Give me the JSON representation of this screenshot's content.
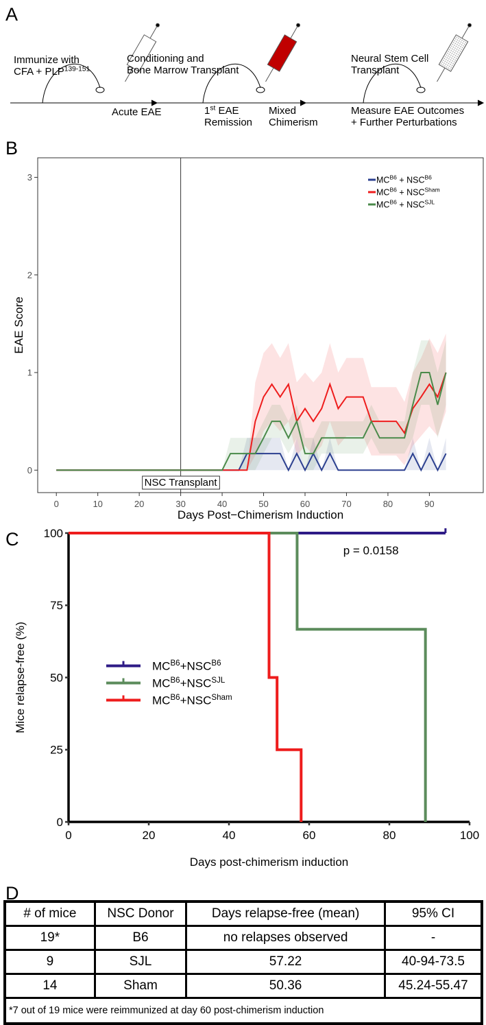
{
  "panel_a": {
    "label": "A",
    "top": [
      {
        "lines": [
          [
            "Immunize with"
          ],
          [
            "CFA + PLP",
            "139-151"
          ]
        ]
      },
      {
        "lines": [
          [
            "Conditioning and"
          ],
          [
            "Bone Marrow Transplant"
          ]
        ]
      },
      {
        "lines": [
          [
            "Neural Stem Cell"
          ],
          [
            "Transplant"
          ]
        ]
      }
    ],
    "bottom": [
      {
        "lines": [
          [
            "Acute EAE"
          ]
        ]
      },
      {
        "lines": [
          [
            "1",
            "st",
            " EAE"
          ],
          [
            "Remission"
          ]
        ]
      },
      {
        "lines": [
          [
            "Mixed"
          ],
          [
            "Chimerism"
          ]
        ]
      },
      {
        "lines": [
          [
            "Measure EAE Outcomes"
          ],
          [
            "+ Further Perturbations"
          ]
        ]
      }
    ]
  },
  "chart_data": [
    {
      "type": "line",
      "panel": "B",
      "ylabel": "EAE Score",
      "xlabel": "Days Post−Chimerism Induction",
      "x": [
        0,
        40,
        42,
        44,
        46,
        48,
        50,
        52,
        54,
        56,
        58,
        60,
        62,
        64,
        66,
        68,
        70,
        72,
        74,
        76,
        78,
        80,
        82,
        84,
        86,
        88,
        90,
        92,
        94
      ],
      "xlim": [
        -4.5,
        103
      ],
      "ylim": [
        -0.23,
        3.2
      ],
      "xticks": [
        0,
        10,
        20,
        30,
        40,
        50,
        60,
        70,
        80,
        90
      ],
      "yticks": [
        0,
        1,
        2,
        3
      ],
      "legend": "top-right",
      "vline": 30,
      "annotation": "NSC Transplant",
      "series": [
        {
          "name": [
            "MC",
            "B6",
            " + NSC",
            "B6"
          ],
          "color": "#2b3f8f",
          "values": [
            0,
            0,
            0,
            0,
            0.17,
            0.17,
            0.17,
            0.17,
            0.17,
            0,
            0.17,
            0,
            0.17,
            0,
            0.17,
            0,
            0,
            0,
            0,
            0,
            0,
            0,
            0,
            0,
            0.17,
            0,
            0.17,
            0,
            0.17
          ],
          "lower": [
            0,
            0,
            0,
            0,
            0,
            0,
            0,
            0,
            0,
            0,
            0,
            0,
            0,
            0,
            0,
            0,
            0,
            0,
            0,
            0,
            0,
            0,
            0,
            0,
            0,
            0,
            0,
            0,
            0
          ],
          "upper": [
            0,
            0,
            0,
            0,
            0.33,
            0.33,
            0.33,
            0.33,
            0.33,
            0,
            0.33,
            0,
            0.33,
            0,
            0.33,
            0,
            0,
            0,
            0,
            0,
            0,
            0,
            0,
            0,
            0.33,
            0,
            0.33,
            0,
            0.33
          ]
        },
        {
          "name": [
            "MC",
            "B6",
            " + NSC",
            "Sham"
          ],
          "color": "#ee1c1c",
          "values": [
            0,
            0,
            0,
            0,
            0,
            0.5,
            0.75,
            0.88,
            0.75,
            0.88,
            0.5,
            0.63,
            0.5,
            0.63,
            0.88,
            0.63,
            0.75,
            0.75,
            0.75,
            0.5,
            0.5,
            0.5,
            0.5,
            0.38,
            0.63,
            0.75,
            0.88,
            0.75,
            1
          ],
          "lower": [
            0,
            0,
            0,
            0,
            0,
            0.15,
            0.4,
            0.5,
            0.4,
            0.5,
            0.15,
            0.25,
            0.15,
            0.25,
            0.5,
            0.25,
            0.35,
            0.35,
            0.35,
            0.15,
            0.15,
            0.15,
            0.15,
            0.05,
            0.25,
            0.35,
            0.45,
            0.35,
            0.6
          ],
          "upper": [
            0,
            0,
            0,
            0,
            0,
            0.9,
            1.2,
            1.3,
            1.15,
            1.3,
            0.9,
            1,
            0.9,
            1,
            1.3,
            1,
            1.15,
            1.15,
            1.15,
            0.85,
            0.85,
            0.85,
            0.85,
            0.7,
            1,
            1.15,
            1.35,
            1.2,
            1.4
          ]
        },
        {
          "name": [
            "MC",
            "B6",
            " + NSC",
            "SJL"
          ],
          "color": "#4a8a4a",
          "values": [
            0,
            0,
            0.17,
            0.17,
            0.17,
            0.17,
            0.33,
            0.5,
            0.5,
            0.33,
            0.5,
            0.17,
            0.17,
            0.33,
            0.33,
            0.33,
            0.33,
            0.33,
            0.33,
            0.5,
            0.33,
            0.33,
            0.33,
            0.33,
            0.67,
            1,
            1,
            0.67,
            1
          ],
          "lower": [
            0,
            0,
            0,
            0,
            0,
            0,
            0.17,
            0.33,
            0.33,
            0.17,
            0.33,
            0,
            0,
            0.17,
            0.17,
            0.17,
            0.17,
            0.17,
            0.17,
            0.33,
            0.17,
            0.17,
            0.17,
            0.17,
            0.33,
            0.67,
            0.67,
            0.33,
            0.67
          ],
          "upper": [
            0,
            0,
            0.33,
            0.33,
            0.33,
            0.33,
            0.5,
            0.67,
            0.67,
            0.5,
            0.67,
            0.33,
            0.33,
            0.5,
            0.5,
            0.5,
            0.5,
            0.5,
            0.5,
            0.67,
            0.5,
            0.5,
            0.5,
            0.5,
            1,
            1.33,
            1.33,
            1,
            1.33
          ]
        }
      ]
    },
    {
      "type": "step",
      "panel": "C",
      "ylabel": "Mice relapse-free (%)",
      "xlabel": "Days post-chimerism induction",
      "xlim": [
        0,
        100
      ],
      "ylim": [
        0,
        100
      ],
      "xticks": [
        0,
        20,
        40,
        60,
        80,
        100
      ],
      "yticks": [
        0,
        25,
        50,
        75,
        100
      ],
      "legend": "center-left",
      "annotation": "p = 0.0158",
      "series": [
        {
          "name": [
            "MC",
            "B6",
            "+NSC",
            "B6"
          ],
          "color": "#2e1b86",
          "x": [
            0,
            94
          ],
          "values": [
            100,
            100
          ],
          "censored": [
            94
          ]
        },
        {
          "name": [
            "MC",
            "B6",
            "+NSC",
            "SJL"
          ],
          "color": "#5c8c5c",
          "x": [
            0,
            57,
            89
          ],
          "values": [
            100,
            66.7,
            0
          ]
        },
        {
          "name": [
            "MC",
            "B6",
            "+NSC",
            "Sham"
          ],
          "color": "#ee1c1c",
          "x": [
            0,
            50,
            52,
            58
          ],
          "values": [
            100,
            50,
            25,
            0
          ]
        }
      ]
    }
  ],
  "table": {
    "label": "D",
    "header": [
      "# of mice",
      "NSC Donor",
      "Days relapse-free (mean)",
      "95% CI"
    ],
    "rows": [
      [
        "19*",
        "B6",
        "no relapses observed",
        "-"
      ],
      [
        "9",
        "SJL",
        "57.22",
        "40-94-73.5"
      ],
      [
        "14",
        "Sham",
        "50.36",
        "45.24-55.47"
      ]
    ],
    "footnote": "*7 out of 19 mice were reimmunized at day 60 post-chimerism induction"
  }
}
